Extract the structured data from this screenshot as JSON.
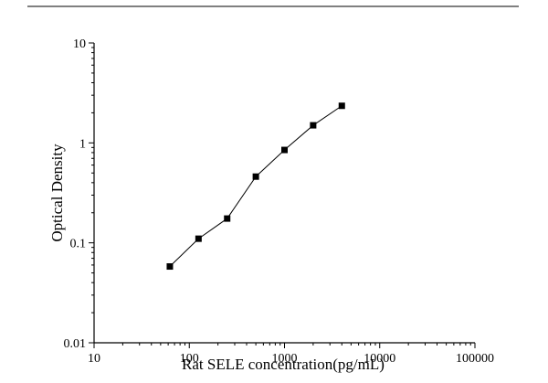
{
  "figure": {
    "background": "#ffffff"
  },
  "chart_data": {
    "type": "line",
    "subtype": "log-log ELISA standard curve with square markers",
    "title": "",
    "xlabel": "Rat SELE concentration(pg/mL)",
    "ylabel": "Optical Density",
    "x": [
      62.5,
      125,
      250,
      500,
      1000,
      2000,
      4000
    ],
    "y": [
      0.058,
      0.11,
      0.175,
      0.46,
      0.85,
      1.5,
      2.35
    ],
    "xscale": "log",
    "yscale": "log",
    "xlim": [
      10,
      100000
    ],
    "ylim": [
      0.01,
      10
    ],
    "xticks": {
      "values": [
        10,
        100,
        1000,
        10000,
        100000
      ],
      "labels": [
        "10",
        "100",
        "1000",
        "10000",
        "100000"
      ]
    },
    "yticks": {
      "values": [
        0.01,
        0.1,
        1,
        10
      ],
      "labels": [
        "0.01",
        "0.1",
        "1",
        "10"
      ]
    },
    "grid": false,
    "marker": "filled-square",
    "colors": {
      "line": "#000000",
      "marker": "#000000",
      "axis": "#000000"
    }
  }
}
